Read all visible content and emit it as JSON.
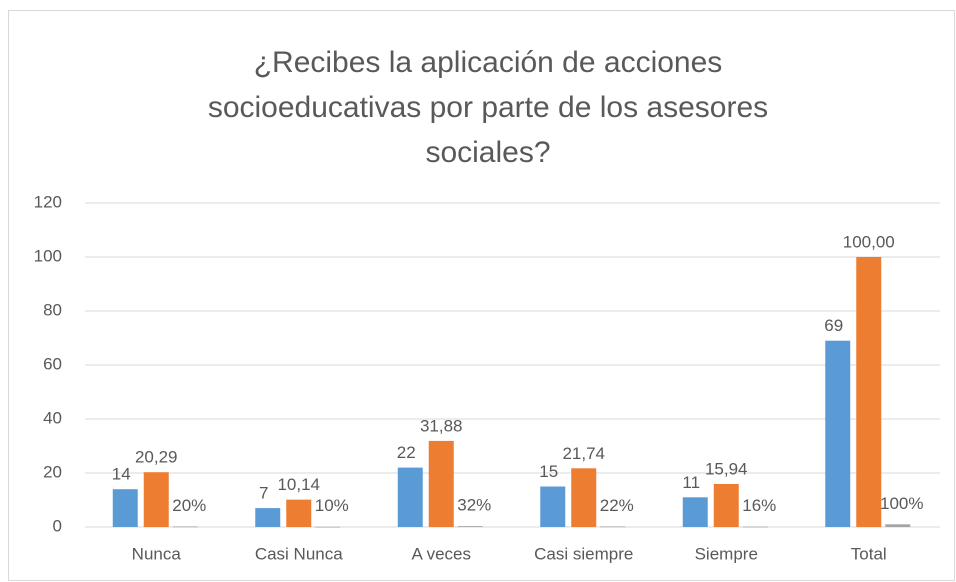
{
  "chart_data": {
    "type": "bar",
    "title": "¿Recibes la aplicación de acciones socioeducativas por parte de los asesores sociales?",
    "categories": [
      "Nunca",
      "Casi Nunca",
      "A veces",
      "Casi siempre",
      "Siempre",
      "Total"
    ],
    "series": [
      {
        "color": "#5b9bd5",
        "values": [
          14,
          7,
          22,
          15,
          11,
          69
        ]
      },
      {
        "color": "#ed7d31",
        "values": [
          20.29,
          10.14,
          31.88,
          21.74,
          15.94,
          100
        ],
        "value_labels": [
          "20,29",
          "10,14",
          "31,88",
          "21,74",
          "15,94",
          "100,00"
        ]
      },
      {
        "color": "#a5a5a5",
        "values": [
          0.2,
          0.1,
          0.32,
          0.22,
          0.16,
          1
        ],
        "value_labels": [
          "20%",
          "10%",
          "32%",
          "22%",
          "16%",
          "100%"
        ]
      }
    ],
    "ylim": [
      0,
      120
    ],
    "yticks": [
      0,
      20,
      40,
      60,
      80,
      100,
      120
    ],
    "grid": true
  }
}
